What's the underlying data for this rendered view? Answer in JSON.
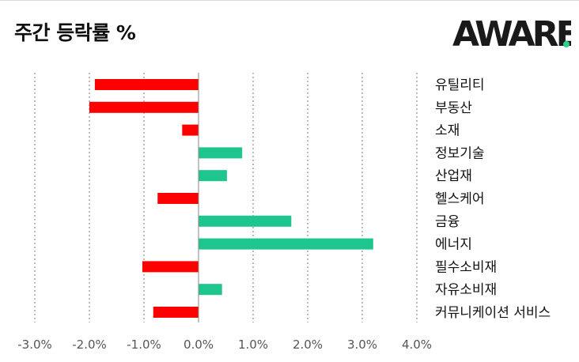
{
  "header": {
    "title": "주간 등락률 %",
    "logo_text": "AWARE"
  },
  "colors": {
    "positive": "#1fc58e",
    "negative": "#ff0000",
    "logo_dark": "#1a1a1a",
    "logo_accent": "#2fd08f"
  },
  "chart_data": {
    "type": "bar",
    "orientation": "horizontal",
    "categories": [
      "유틸리티",
      "부동산",
      "소재",
      "정보기술",
      "산업재",
      "헬스케어",
      "금융",
      "에너지",
      "필수소비재",
      "자유소비재",
      "커뮤니케이션 서비스"
    ],
    "values": [
      -1.9,
      -2.0,
      -0.3,
      0.8,
      0.52,
      -0.75,
      1.7,
      3.2,
      -1.03,
      0.43,
      -0.83
    ],
    "xlim": [
      -3.0,
      4.0
    ],
    "xticks": [
      -3.0,
      -2.0,
      -1.0,
      0.0,
      1.0,
      2.0,
      3.0,
      4.0
    ],
    "xtick_labels": [
      "-3.0%",
      "-2.0%",
      "-1.0%",
      "0.0%",
      "1.0%",
      "2.0%",
      "3.0%",
      "4.0%"
    ],
    "grid": "vertical dashed",
    "category_labels_side": "right",
    "title": "주간 등락률 %"
  }
}
